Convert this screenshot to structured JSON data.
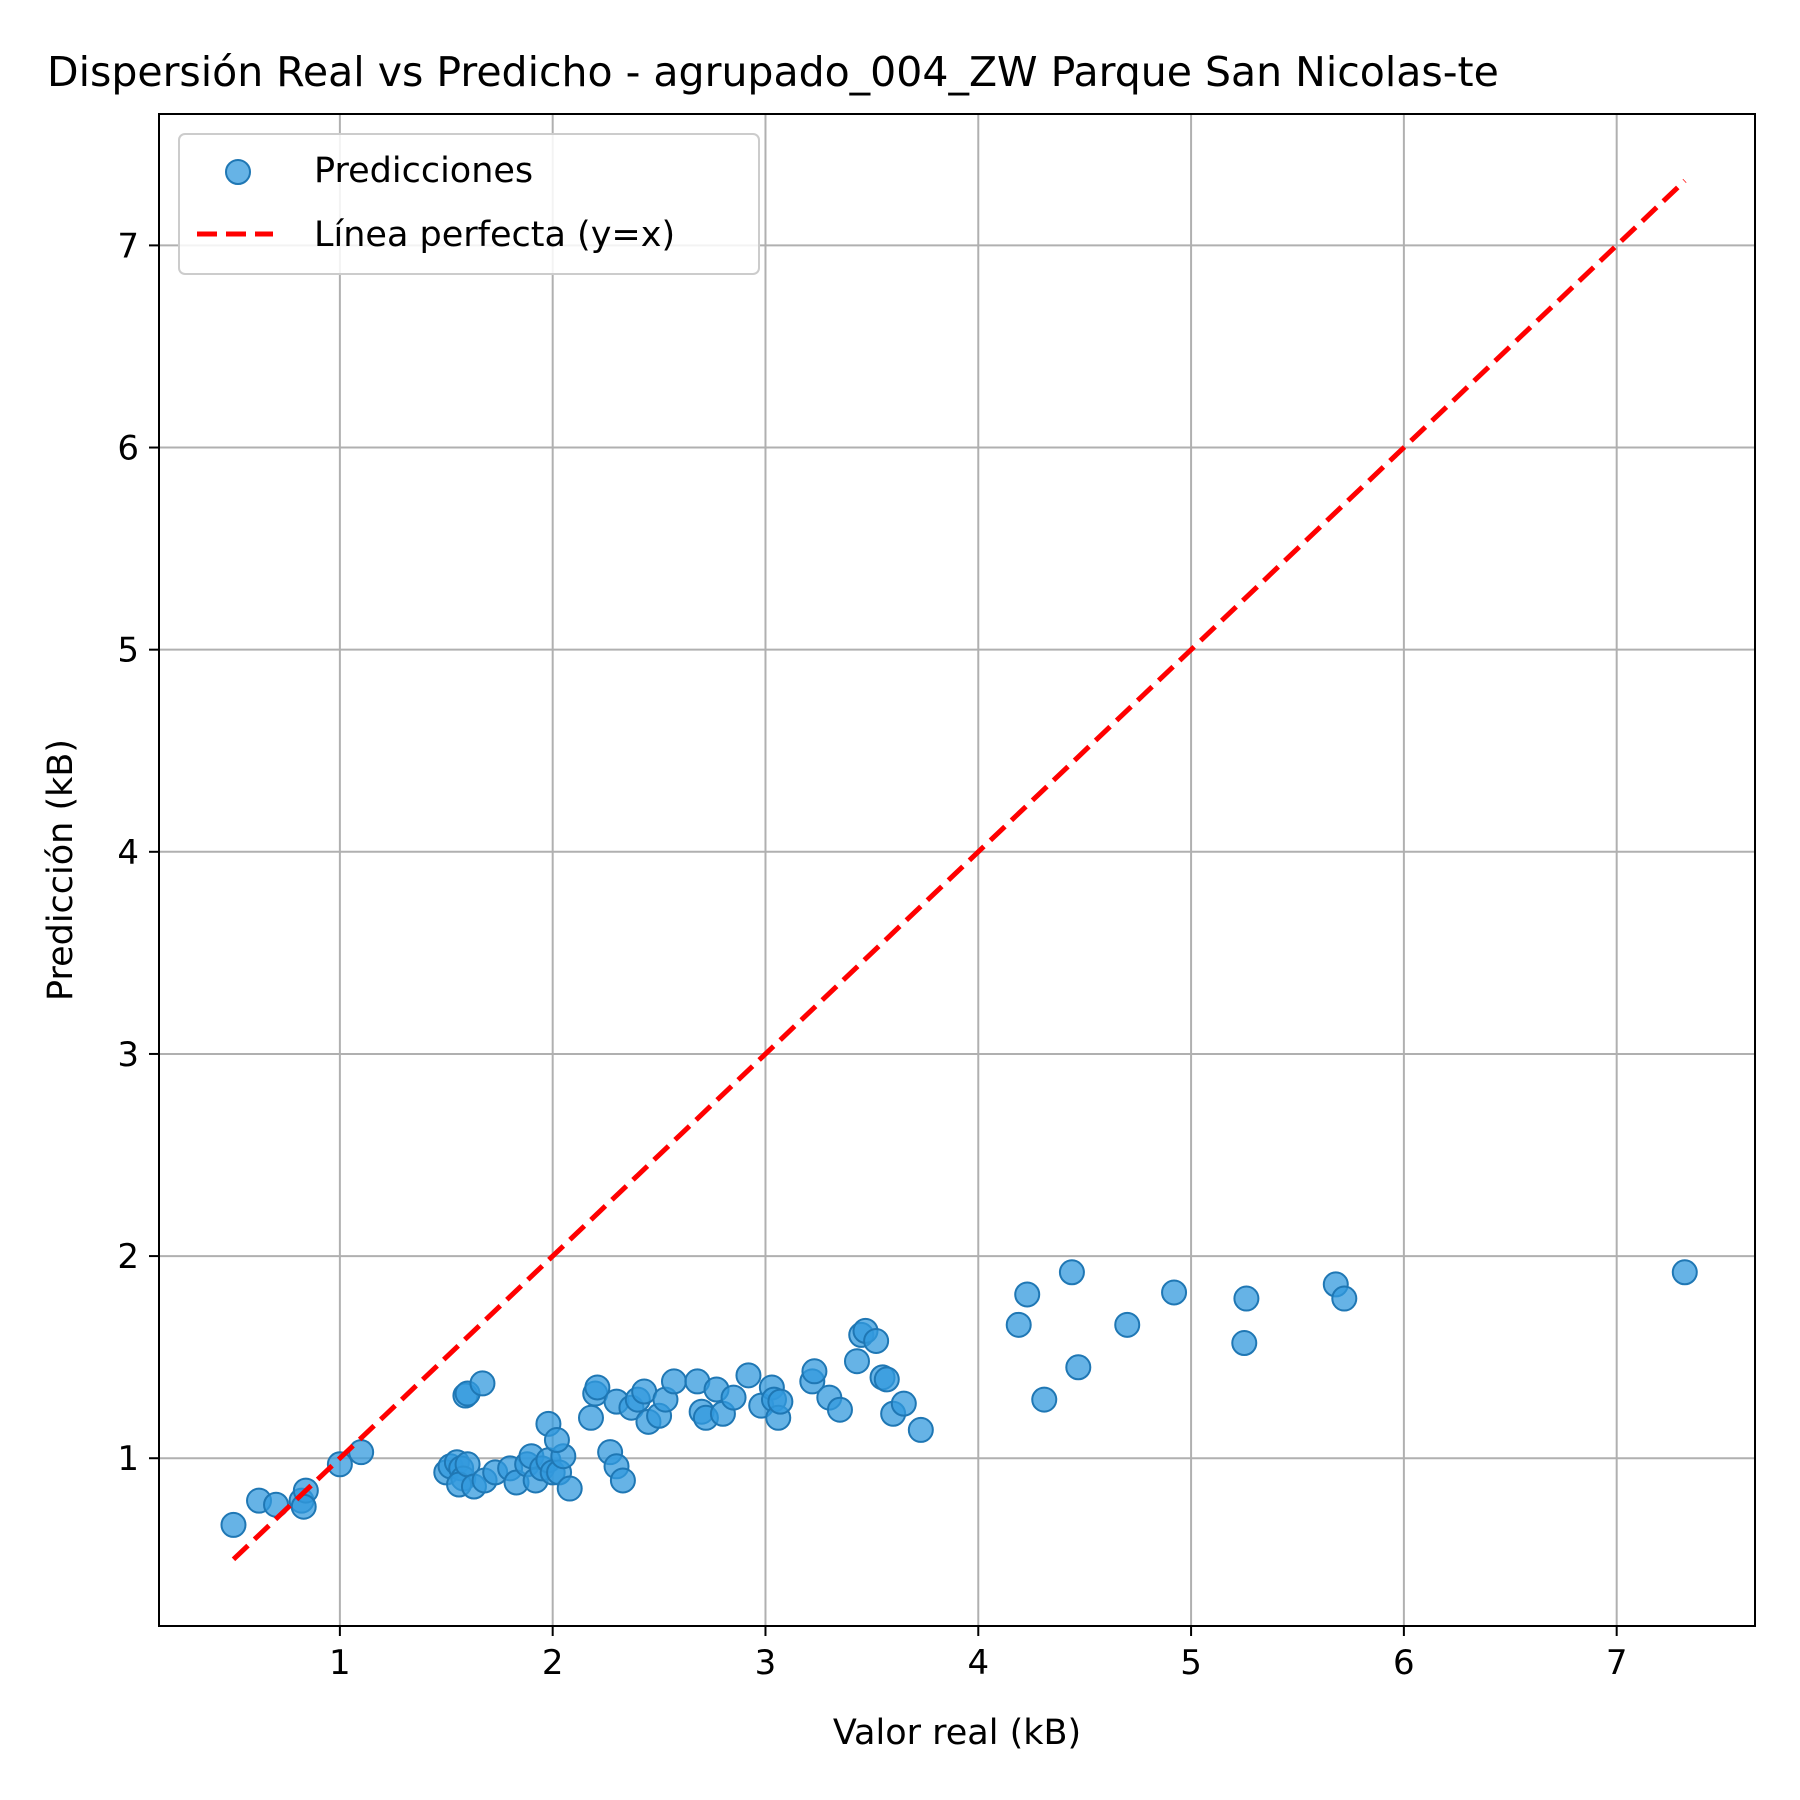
{
  "chart_data": {
    "type": "scatter",
    "title": "Dispersión Real vs Predicho - agrupado_004_ZW Parque San Nicolas-te",
    "xlabel": "Valor real (kB)",
    "ylabel": "Predicción (kB)",
    "xlim": [
      0.15,
      7.65
    ],
    "ylim": [
      0.17,
      7.65
    ],
    "xticks": [
      1,
      2,
      3,
      4,
      5,
      6,
      7
    ],
    "yticks": [
      1,
      2,
      3,
      4,
      5,
      6,
      7
    ],
    "grid": true,
    "legend_position": "top-left",
    "series": [
      {
        "name": "Predicciones",
        "kind": "scatter",
        "color": "#1f77b4",
        "fill": "#3399dd",
        "points": [
          [
            0.5,
            0.67
          ],
          [
            0.62,
            0.79
          ],
          [
            0.7,
            0.77
          ],
          [
            0.82,
            0.79
          ],
          [
            0.84,
            0.84
          ],
          [
            0.83,
            0.76
          ],
          [
            1.0,
            0.97
          ],
          [
            1.1,
            1.03
          ],
          [
            1.5,
            0.93
          ],
          [
            1.52,
            0.96
          ],
          [
            1.55,
            0.98
          ],
          [
            1.57,
            0.95
          ],
          [
            1.58,
            0.9
          ],
          [
            1.56,
            0.87
          ],
          [
            1.6,
            0.97
          ],
          [
            1.63,
            0.86
          ],
          [
            1.68,
            0.89
          ],
          [
            1.73,
            0.93
          ],
          [
            1.8,
            0.95
          ],
          [
            1.83,
            0.88
          ],
          [
            1.88,
            0.97
          ],
          [
            1.9,
            1.01
          ],
          [
            1.92,
            0.89
          ],
          [
            1.95,
            0.95
          ],
          [
            1.98,
            0.99
          ],
          [
            2.0,
            0.93
          ],
          [
            2.03,
            0.93
          ],
          [
            2.05,
            1.01
          ],
          [
            2.08,
            0.85
          ],
          [
            1.98,
            1.17
          ],
          [
            2.02,
            1.09
          ],
          [
            1.59,
            1.31
          ],
          [
            1.6,
            1.32
          ],
          [
            1.67,
            1.37
          ],
          [
            2.18,
            1.2
          ],
          [
            2.2,
            1.32
          ],
          [
            2.21,
            1.35
          ],
          [
            2.27,
            1.03
          ],
          [
            2.3,
            0.96
          ],
          [
            2.33,
            0.89
          ],
          [
            2.3,
            1.28
          ],
          [
            2.37,
            1.25
          ],
          [
            2.4,
            1.29
          ],
          [
            2.43,
            1.33
          ],
          [
            2.45,
            1.18
          ],
          [
            2.5,
            1.21
          ],
          [
            2.53,
            1.29
          ],
          [
            2.57,
            1.38
          ],
          [
            2.68,
            1.38
          ],
          [
            2.7,
            1.23
          ],
          [
            2.72,
            1.2
          ],
          [
            2.77,
            1.34
          ],
          [
            2.8,
            1.22
          ],
          [
            2.85,
            1.3
          ],
          [
            2.92,
            1.41
          ],
          [
            2.98,
            1.26
          ],
          [
            3.03,
            1.35
          ],
          [
            3.04,
            1.29
          ],
          [
            3.06,
            1.2
          ],
          [
            3.07,
            1.28
          ],
          [
            3.22,
            1.38
          ],
          [
            3.23,
            1.43
          ],
          [
            3.3,
            1.3
          ],
          [
            3.35,
            1.24
          ],
          [
            3.43,
            1.48
          ],
          [
            3.45,
            1.61
          ],
          [
            3.47,
            1.63
          ],
          [
            3.52,
            1.58
          ],
          [
            3.55,
            1.4
          ],
          [
            3.57,
            1.39
          ],
          [
            3.6,
            1.22
          ],
          [
            3.65,
            1.27
          ],
          [
            3.73,
            1.14
          ],
          [
            4.19,
            1.66
          ],
          [
            4.23,
            1.81
          ],
          [
            4.31,
            1.29
          ],
          [
            4.44,
            1.92
          ],
          [
            4.47,
            1.45
          ],
          [
            4.7,
            1.66
          ],
          [
            4.92,
            1.82
          ],
          [
            5.25,
            1.57
          ],
          [
            5.26,
            1.79
          ],
          [
            5.68,
            1.86
          ],
          [
            5.72,
            1.79
          ],
          [
            7.32,
            1.92
          ]
        ]
      },
      {
        "name": "Línea perfecta (y=x)",
        "kind": "line",
        "style": "dashed",
        "color": "#ff0000",
        "x": [
          0.5,
          7.32
        ],
        "y": [
          0.5,
          7.32
        ]
      }
    ]
  }
}
